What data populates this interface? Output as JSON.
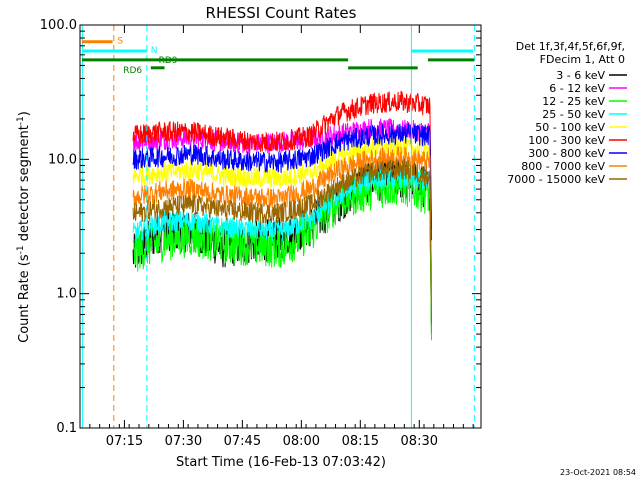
{
  "chart_data": {
    "type": "line",
    "title": "RHESSI Count Rates",
    "xlabel": "Start Time (16-Feb-13 07:03:42)",
    "ylabel_main": "Count Rate (s",
    "ylabel_sup": "-1",
    "ylabel_mid": " detector segment",
    "ylabel_sup2": "-1",
    "ylabel_end": ")",
    "y_scale": "log",
    "ylim": [
      0.1,
      100.0
    ],
    "xlim_min": [
      0,
      102
    ],
    "y_ticks": [
      {
        "value": 0.1,
        "label": "0.1"
      },
      {
        "value": 1.0,
        "label": "1.0"
      },
      {
        "value": 10.0,
        "label": "10.0"
      },
      {
        "value": 100.0,
        "label": "100.0"
      }
    ],
    "x_ticks": [
      {
        "value": 11.3,
        "label": "07:15"
      },
      {
        "value": 26.3,
        "label": "07:30"
      },
      {
        "value": 41.3,
        "label": "07:45"
      },
      {
        "value": 56.3,
        "label": "08:00"
      },
      {
        "value": 71.3,
        "label": "08:15"
      },
      {
        "value": 86.3,
        "label": "08:30"
      }
    ],
    "legend_header": [
      "Det 1f,3f,4f,5f,6f,9f,",
      "FDecim 1, Att 0"
    ],
    "legend_placement": "right",
    "series": [
      {
        "name": "3 - 6 keV",
        "color": "#000000",
        "base": [
          1.9,
          3.0,
          2.9,
          2.2,
          2.4,
          2.6,
          3.2,
          5.0,
          7.0,
          7.2,
          6.0
        ]
      },
      {
        "name": "6 - 12 keV",
        "color": "#ff00ff",
        "base": [
          13.5,
          14.0,
          14.5,
          13.5,
          13.0,
          13.5,
          14.0,
          15.5,
          17.0,
          16.5,
          16.0
        ]
      },
      {
        "name": "12 - 25 keV",
        "color": "#00ff00",
        "base": [
          2.0,
          2.5,
          2.7,
          2.4,
          2.3,
          2.2,
          2.9,
          5.0,
          6.0,
          6.5,
          5.5
        ]
      },
      {
        "name": "25 - 50 keV",
        "color": "#00ffff",
        "base": [
          2.8,
          3.4,
          3.5,
          3.1,
          3.0,
          2.9,
          3.6,
          5.5,
          7.0,
          7.3,
          6.8
        ]
      },
      {
        "name": "50 - 100 keV",
        "color": "#ffff00",
        "base": [
          7.5,
          8.0,
          8.3,
          7.6,
          7.3,
          7.2,
          8.0,
          10.5,
          12.0,
          12.5,
          11.5
        ]
      },
      {
        "name": "100 - 300 keV",
        "color": "#ff0000",
        "base": [
          15.0,
          16.0,
          16.0,
          14.5,
          13.5,
          13.5,
          15.0,
          22.0,
          26.0,
          27.0,
          25.0
        ]
      },
      {
        "name": "300 - 800 keV",
        "color": "#0000ff",
        "base": [
          10.0,
          10.5,
          11.0,
          10.0,
          9.6,
          9.5,
          10.5,
          13.5,
          15.0,
          15.5,
          15.0
        ]
      },
      {
        "name": "800 - 7000 keV",
        "color": "#ff8000",
        "base": [
          5.2,
          5.8,
          6.0,
          5.4,
          5.2,
          5.1,
          6.0,
          8.5,
          10.0,
          10.5,
          9.5
        ]
      },
      {
        "name": "7000 - 15000 keV",
        "color": "#996600",
        "base": [
          3.9,
          4.4,
          4.6,
          4.2,
          4.0,
          4.0,
          4.6,
          6.5,
          8.0,
          8.5,
          7.5
        ]
      }
    ],
    "series_x_range": [
      13.5,
      89.0
    ],
    "annotations": {
      "S": "S",
      "N": "N",
      "RD9": "RD9",
      "RD6": "RD6"
    },
    "vertical_lines": [
      {
        "x": 0.6,
        "color": "#00ffff",
        "style": "solid"
      },
      {
        "x": 8.6,
        "color": "#ff8000",
        "style": "dashed"
      },
      {
        "x": 17.0,
        "color": "#00ffff",
        "style": "dashed"
      },
      {
        "x": 84.3,
        "color": "#00ffff",
        "style": "solid"
      },
      {
        "x": 100.3,
        "color": "#00ffff",
        "style": "dashed"
      }
    ],
    "status_bars": [
      {
        "name": "S",
        "color": "#ff8000",
        "x1": 0.5,
        "x2": 8.3,
        "y": 75.0
      },
      {
        "name": "N",
        "color": "#00ffff",
        "x1": 0.5,
        "x2": 17.0,
        "y": 64.0
      },
      {
        "name": "N",
        "color": "#00ffff",
        "x1": 84.3,
        "x2": 100.0,
        "y": 64.0
      },
      {
        "name": "RD9",
        "color": "#008000",
        "x1": 0.5,
        "x2": 68.2,
        "y": 55.0
      },
      {
        "name": "RD9",
        "color": "#008000",
        "x1": 88.5,
        "x2": 100.3,
        "y": 55.0
      },
      {
        "name": "RD6",
        "color": "#008000",
        "x1": 68.2,
        "x2": 85.9,
        "y": 48.0
      },
      {
        "name": "RD6",
        "color": "#008000",
        "x1": 18.0,
        "x2": 21.5,
        "y": 48.0
      }
    ],
    "timestamp": "23-Oct-2021 08:54"
  }
}
